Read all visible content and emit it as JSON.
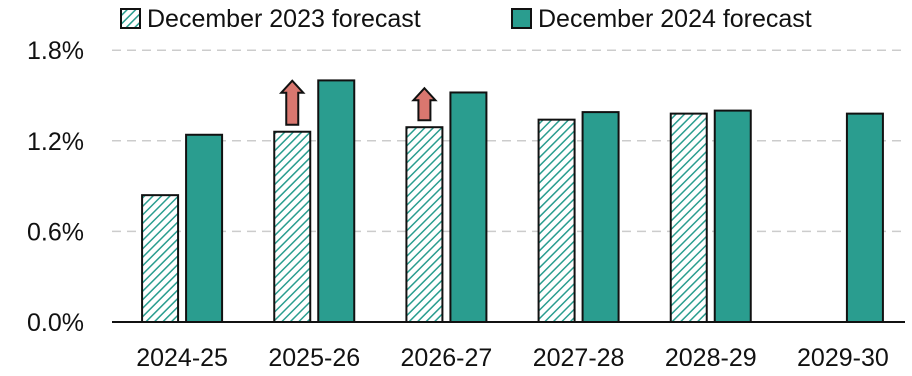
{
  "chart_data": {
    "type": "bar",
    "categories": [
      "2024-25",
      "2025-26",
      "2026-27",
      "2027-28",
      "2028-29",
      "2029-30"
    ],
    "series": [
      {
        "name": "December 2023 forecast",
        "values": [
          0.84,
          1.26,
          1.29,
          1.34,
          1.38,
          null
        ],
        "color": "#2a9d8f",
        "pattern": "diagonal-hatch"
      },
      {
        "name": "December 2024 forecast",
        "values": [
          1.24,
          1.6,
          1.52,
          1.39,
          1.4,
          1.38
        ],
        "color": "#2a9d8f",
        "pattern": "solid"
      }
    ],
    "ylim": [
      0,
      2.0
    ],
    "yticks": [
      "0.0%",
      "0.6%",
      "1.2%",
      "1.8%"
    ],
    "ytick_values": [
      0,
      0.6,
      1.2,
      1.8
    ],
    "grid": true,
    "legend_position": "top",
    "annotations": [
      {
        "type": "up-arrow",
        "category": "2025-26",
        "color": "#d9776f"
      },
      {
        "type": "up-arrow",
        "category": "2026-27",
        "color": "#d9776f"
      }
    ],
    "title": "",
    "xlabel": "",
    "ylabel": ""
  }
}
